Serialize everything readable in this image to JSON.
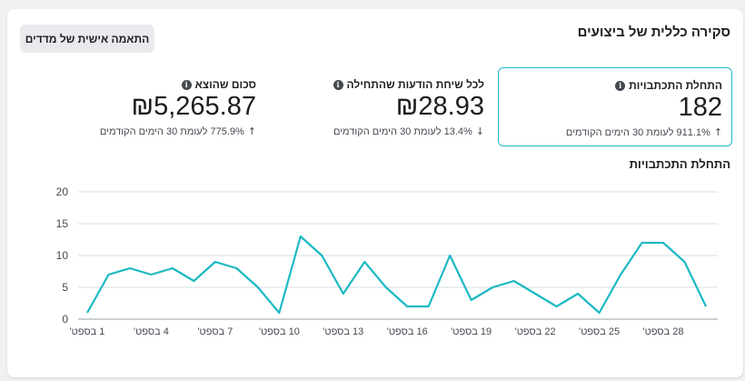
{
  "header": {
    "title": "סקירה כללית של ביצועים",
    "customize_button": "התאמה אישית של מדדים"
  },
  "metrics": [
    {
      "label": "התחלת התכתבויות",
      "value": "182",
      "change": "911.1% לעומת 30 הימים הקודמים",
      "direction": "up",
      "selected": true
    },
    {
      "label": "לכל שיחת הודעות שהתחילה",
      "value": "₪28.93",
      "change": "13.4% לעומת 30 הימים הקודמים",
      "direction": "down",
      "selected": false
    },
    {
      "label": "סכום שהוצא",
      "value": "₪5,265.87",
      "change": "775.9% לעומת 30 הימים הקודמים",
      "direction": "up",
      "selected": false
    }
  ],
  "icons": {
    "info": "info-icon",
    "arrow_up": "arrow-up-icon",
    "arrow_down": "arrow-down-icon"
  },
  "colors": {
    "accent": "#1bb9c3",
    "text": "#1c1e21",
    "muted": "#444950"
  },
  "chart_data": {
    "type": "line",
    "title": "התחלת התכתבויות",
    "ylim": [
      0,
      20
    ],
    "yticks": [
      0,
      5,
      10,
      15,
      20
    ],
    "grid": true,
    "x": [
      "1 בספט'",
      "2 בספט'",
      "3 בספט'",
      "4 בספט'",
      "5 בספט'",
      "6 בספט'",
      "7 בספט'",
      "8 בספט'",
      "9 בספט'",
      "10 בספט'",
      "11 בספט'",
      "12 בספט'",
      "13 בספט'",
      "14 בספט'",
      "15 בספט'",
      "16 בספט'",
      "17 בספט'",
      "18 בספט'",
      "19 בספט'",
      "20 בספט'",
      "21 בספט'",
      "22 בספט'",
      "23 בספט'",
      "24 בספט'",
      "25 בספט'",
      "26 בספט'",
      "27 בספט'",
      "28 בספט'",
      "29 בספט'",
      "30 בספט'"
    ],
    "xtick_labels": [
      "1 בספט'",
      "4 בספט'",
      "7 בספט'",
      "10 בספט'",
      "13 בספט'",
      "16 בספט'",
      "19 בספט'",
      "22 בספט'",
      "25 בספט'",
      "28 בספט'"
    ],
    "series": [
      {
        "values": [
          1,
          7,
          8,
          7,
          8,
          6,
          9,
          8,
          5,
          1,
          13,
          10,
          4,
          9,
          5,
          2,
          2,
          10,
          3,
          5,
          6,
          4,
          2,
          4,
          1,
          7,
          12,
          12,
          9,
          2
        ]
      }
    ]
  }
}
